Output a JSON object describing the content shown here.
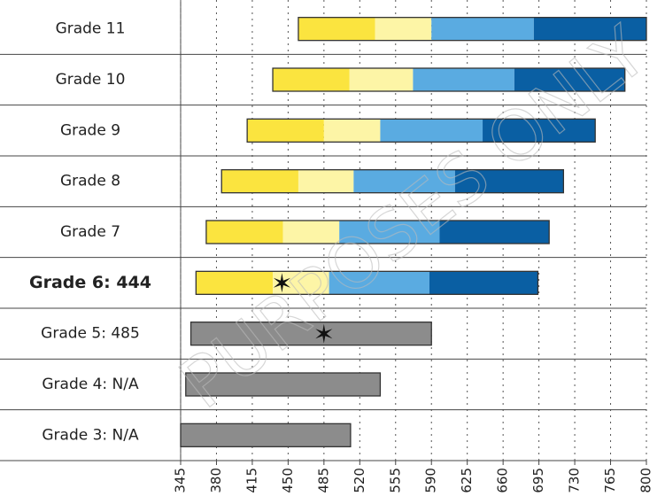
{
  "chart_data": {
    "type": "range-bar",
    "watermark": "PURPOSES ONLY",
    "xlim": [
      345,
      800
    ],
    "xticks": [
      345,
      380,
      415,
      450,
      485,
      520,
      555,
      590,
      625,
      660,
      695,
      730,
      765,
      800
    ],
    "grid": true,
    "score_marker": "star",
    "rows": [
      {
        "label": "Grade 11",
        "cuts": [
          460,
          535,
          590,
          690,
          800
        ],
        "colors": [
          "#fbe43f",
          "#fdf5a6",
          "#5aabe1",
          "#0a5fa3"
        ]
      },
      {
        "label": "Grade 10",
        "cuts": [
          435,
          510,
          572,
          671,
          779
        ],
        "colors": [
          "#fbe43f",
          "#fdf5a6",
          "#5aabe1",
          "#0a5fa3"
        ]
      },
      {
        "label": "Grade 9",
        "cuts": [
          410,
          485,
          540,
          640,
          750
        ],
        "colors": [
          "#fbe43f",
          "#fdf5a6",
          "#5aabe1",
          "#0a5fa3"
        ]
      },
      {
        "label": "Grade 8",
        "cuts": [
          385,
          460,
          514,
          613,
          719
        ],
        "colors": [
          "#fbe43f",
          "#fdf5a6",
          "#5aabe1",
          "#0a5fa3"
        ]
      },
      {
        "label": "Grade 7",
        "cuts": [
          370,
          445,
          500,
          598,
          705
        ],
        "colors": [
          "#fbe43f",
          "#fdf5a6",
          "#5aabe1",
          "#0a5fa3"
        ]
      },
      {
        "label": "Grade 6: 444",
        "bold": true,
        "score": 444,
        "cuts": [
          360,
          435,
          490,
          588,
          694
        ],
        "colors": [
          "#fbe43f",
          "#fdf5a6",
          "#5aabe1",
          "#0a5fa3"
        ]
      },
      {
        "label": "Grade 5: 485",
        "score": 485,
        "cuts": [
          355,
          590
        ],
        "colors": [
          "#8c8c8c"
        ]
      },
      {
        "label": "Grade 4: N/A",
        "cuts": [
          350,
          540
        ],
        "colors": [
          "#8c8c8c"
        ]
      },
      {
        "label": "Grade 3: N/A",
        "cuts": [
          345,
          511
        ],
        "colors": [
          "#8c8c8c"
        ]
      }
    ]
  }
}
